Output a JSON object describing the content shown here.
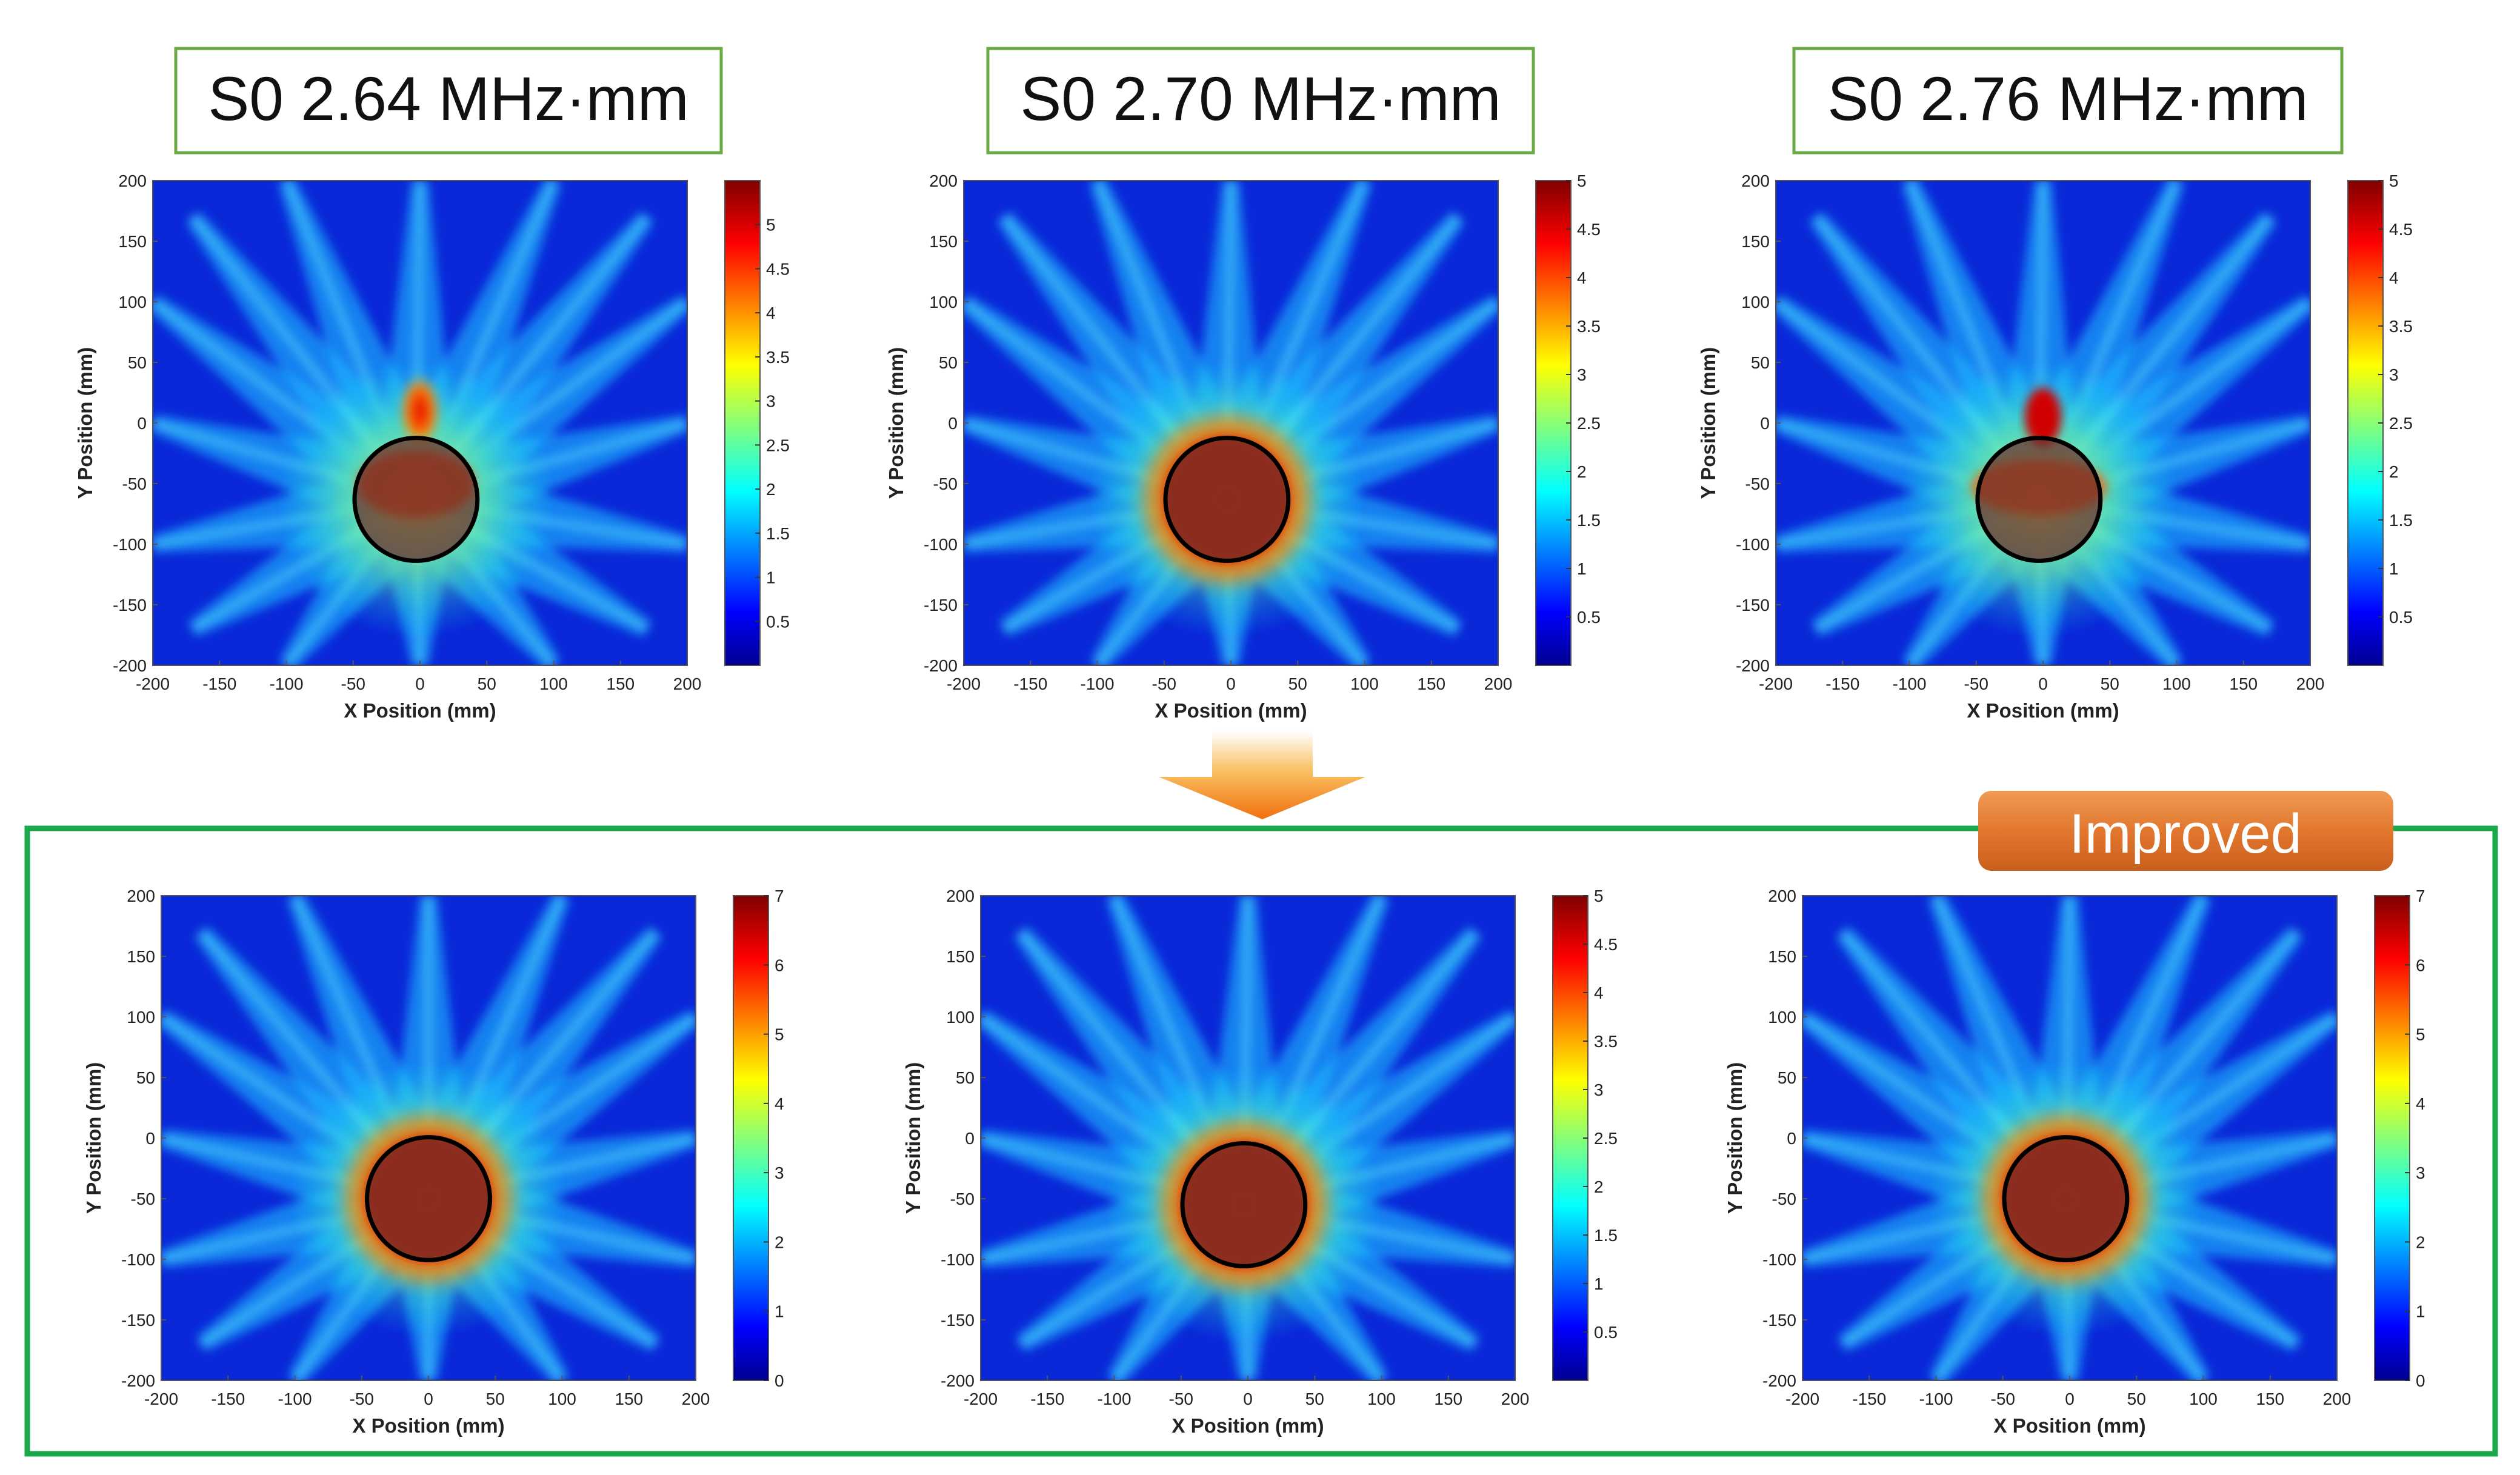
{
  "figure": {
    "improved_label": "Improved",
    "frame_color": "#1aa84b",
    "label_border_color": "#6aaa45",
    "badge_color": "#e07a2e",
    "arrow_color": "#f08c1a"
  },
  "chart_data": [
    {
      "type": "heatmap",
      "row": "top",
      "title": "S0 2.64 MHz·mm",
      "xlabel": "X Position (mm)",
      "ylabel": "Y Position (mm)",
      "xlim": [
        -200,
        200
      ],
      "ylim": [
        -200,
        200
      ],
      "xticks": [
        -200,
        -150,
        -100,
        -50,
        0,
        50,
        100,
        150,
        200
      ],
      "yticks": [
        200,
        150,
        100,
        50,
        0,
        -50,
        -100,
        -150,
        -200
      ],
      "colorbar": {
        "min": 0,
        "max": 5.5,
        "ticks": [
          "5",
          "4.5",
          "4",
          "3.5",
          "3",
          "2.5",
          "2",
          "1.5",
          "1",
          "0.5"
        ],
        "tick_values": [
          5,
          4.5,
          4,
          3.5,
          3,
          2.5,
          2,
          1.5,
          1,
          0.5
        ]
      },
      "defect_center": [
        -3,
        -63
      ],
      "defect_radius": 46,
      "hotspot": "upper"
    },
    {
      "type": "heatmap",
      "row": "top",
      "title": "S0 2.70 MHz·mm",
      "xlabel": "X Position (mm)",
      "ylabel": "Y Position (mm)",
      "xlim": [
        -200,
        200
      ],
      "ylim": [
        -200,
        200
      ],
      "xticks": [
        -200,
        -150,
        -100,
        -50,
        0,
        50,
        100,
        150,
        200
      ],
      "yticks": [
        200,
        150,
        100,
        50,
        0,
        -50,
        -100,
        -150,
        -200
      ],
      "colorbar": {
        "min": 0,
        "max": 5,
        "ticks": [
          "5",
          "4.5",
          "4",
          "3.5",
          "3",
          "2.5",
          "2",
          "1.5",
          "1",
          "0.5"
        ],
        "tick_values": [
          5,
          4.5,
          4,
          3.5,
          3,
          2.5,
          2,
          1.5,
          1,
          0.5
        ]
      },
      "defect_center": [
        -3,
        -63
      ],
      "defect_radius": 46,
      "hotspot": "full"
    },
    {
      "type": "heatmap",
      "row": "top",
      "title": "S0 2.76 MHz·mm",
      "xlabel": "X Position (mm)",
      "ylabel": "Y Position (mm)",
      "xlim": [
        -200,
        200
      ],
      "ylim": [
        -200,
        200
      ],
      "xticks": [
        -200,
        -150,
        -100,
        -50,
        0,
        50,
        100,
        150,
        200
      ],
      "yticks": [
        200,
        150,
        100,
        50,
        0,
        -50,
        -100,
        -150,
        -200
      ],
      "colorbar": {
        "min": 0,
        "max": 5,
        "ticks": [
          "5",
          "4.5",
          "4",
          "3.5",
          "3",
          "2.5",
          "2",
          "1.5",
          "1",
          "0.5"
        ],
        "tick_values": [
          5,
          4.5,
          4,
          3.5,
          3,
          2.5,
          2,
          1.5,
          1,
          0.5
        ]
      },
      "defect_center": [
        -3,
        -63
      ],
      "defect_radius": 46,
      "hotspot": "band"
    },
    {
      "type": "heatmap",
      "row": "bottom",
      "title": "",
      "xlabel": "X Position (mm)",
      "ylabel": "Y Position (mm)",
      "xlim": [
        -200,
        200
      ],
      "ylim": [
        -200,
        200
      ],
      "xticks": [
        -200,
        -150,
        -100,
        -50,
        0,
        50,
        100,
        150,
        200
      ],
      "yticks": [
        200,
        150,
        100,
        50,
        0,
        -50,
        -100,
        -150,
        -200
      ],
      "colorbar": {
        "min": 0,
        "max": 7,
        "ticks": [
          "7",
          "6",
          "5",
          "4",
          "3",
          "2",
          "1",
          "0"
        ],
        "tick_values": [
          7,
          6,
          5,
          4,
          3,
          2,
          1,
          0
        ]
      },
      "defect_center": [
        0,
        -50
      ],
      "defect_radius": 46,
      "hotspot": "full"
    },
    {
      "type": "heatmap",
      "row": "bottom",
      "title": "",
      "xlabel": "X Position (mm)",
      "ylabel": "Y Position (mm)",
      "xlim": [
        -200,
        200
      ],
      "ylim": [
        -200,
        200
      ],
      "xticks": [
        -200,
        -150,
        -100,
        -50,
        0,
        50,
        100,
        150,
        200
      ],
      "yticks": [
        200,
        150,
        100,
        50,
        0,
        -50,
        -100,
        -150,
        -200
      ],
      "colorbar": {
        "min": 0,
        "max": 5,
        "ticks": [
          "5",
          "4.5",
          "4",
          "3.5",
          "3",
          "2.5",
          "2",
          "1.5",
          "1",
          "0.5"
        ],
        "tick_values": [
          5,
          4.5,
          4,
          3.5,
          3,
          2.5,
          2,
          1.5,
          1,
          0.5
        ]
      },
      "defect_center": [
        -3,
        -55
      ],
      "defect_radius": 46,
      "hotspot": "full"
    },
    {
      "type": "heatmap",
      "row": "bottom",
      "title": "",
      "xlabel": "X Position (mm)",
      "ylabel": "Y Position (mm)",
      "xlim": [
        -200,
        200
      ],
      "ylim": [
        -200,
        200
      ],
      "xticks": [
        -200,
        -150,
        -100,
        -50,
        0,
        50,
        100,
        150,
        200
      ],
      "yticks": [
        200,
        150,
        100,
        50,
        0,
        -50,
        -100,
        -150,
        -200
      ],
      "colorbar": {
        "min": 0,
        "max": 7,
        "ticks": [
          "7",
          "6",
          "5",
          "4",
          "3",
          "2",
          "1",
          "0"
        ],
        "tick_values": [
          7,
          6,
          5,
          4,
          3,
          2,
          1,
          0
        ]
      },
      "defect_center": [
        -3,
        -50
      ],
      "defect_radius": 46,
      "hotspot": "full"
    }
  ]
}
